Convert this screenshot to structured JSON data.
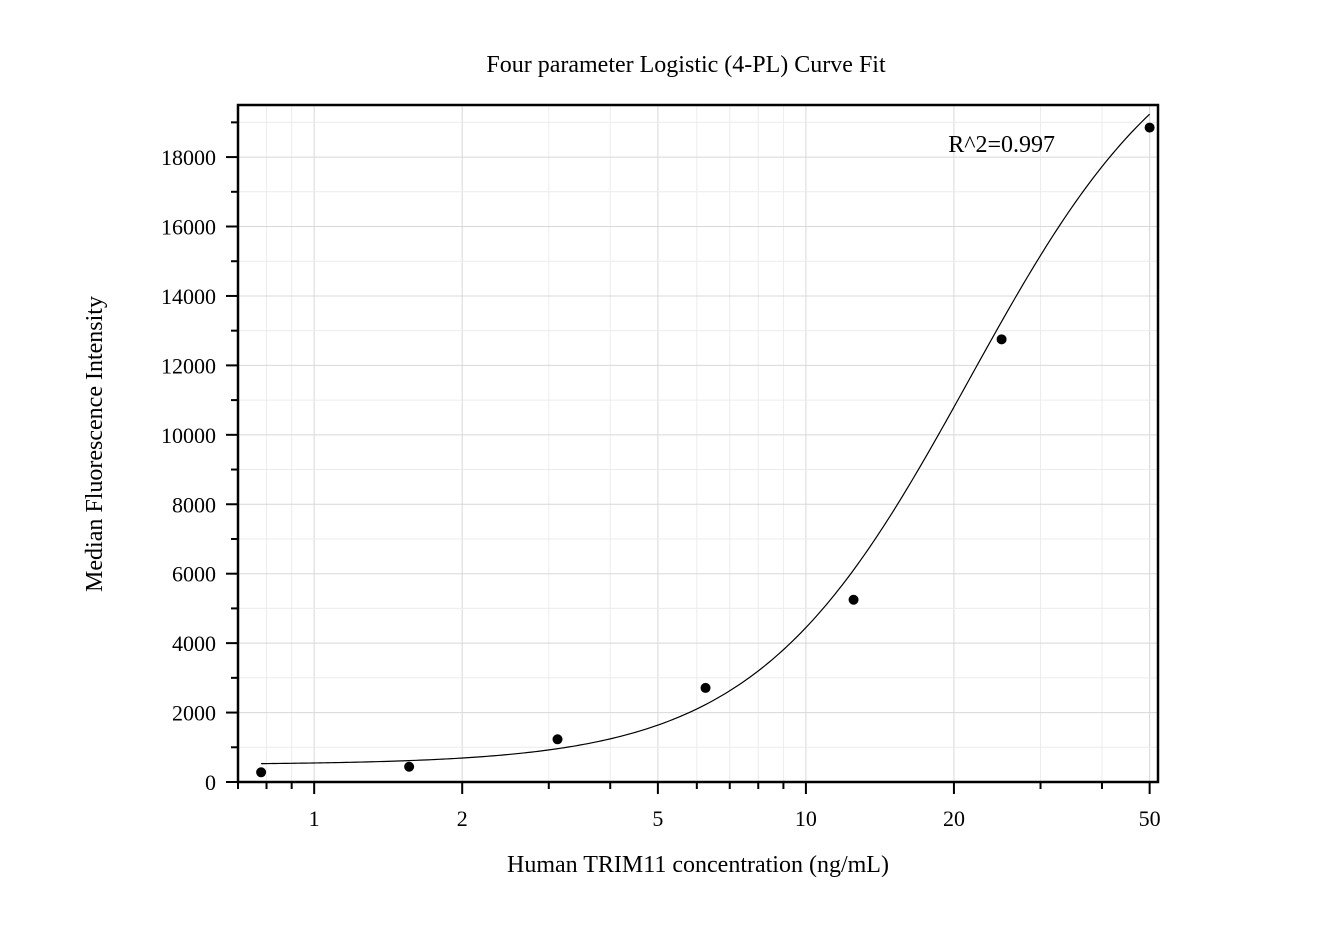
{
  "chart_data": {
    "type": "scatter",
    "title": "Four parameter Logistic (4-PL) Curve Fit",
    "xlabel": "Human TRIM11 concentration (ng/mL)",
    "ylabel": "Median Fluorescence Intensity",
    "x_scale": "log",
    "xlim": [
      0.7,
      52
    ],
    "ylim": [
      0,
      19500
    ],
    "x_ticks": [
      1,
      2,
      5,
      10,
      20,
      50
    ],
    "x_tick_labels": [
      "1",
      "2",
      "5",
      "10",
      "20",
      "50"
    ],
    "y_ticks": [
      0,
      2000,
      4000,
      6000,
      8000,
      10000,
      12000,
      14000,
      16000,
      18000
    ],
    "y_tick_labels": [
      "0",
      "2000",
      "4000",
      "6000",
      "8000",
      "10000",
      "12000",
      "14000",
      "16000",
      "18000"
    ],
    "grid": true,
    "series": [
      {
        "kind": "points",
        "x": [
          0.78,
          1.56,
          3.125,
          6.25,
          12.5,
          25,
          50
        ],
        "y": [
          280,
          440,
          1230,
          2710,
          5250,
          12750,
          18850
        ]
      },
      {
        "kind": "fit",
        "model": "4PL",
        "params": {
          "A": 500,
          "B": 2.0,
          "C": 21.5,
          "D": 22700
        }
      }
    ],
    "annotations": [
      {
        "text": "R^2=0.997",
        "x": 25,
        "y": 18150
      }
    ]
  }
}
